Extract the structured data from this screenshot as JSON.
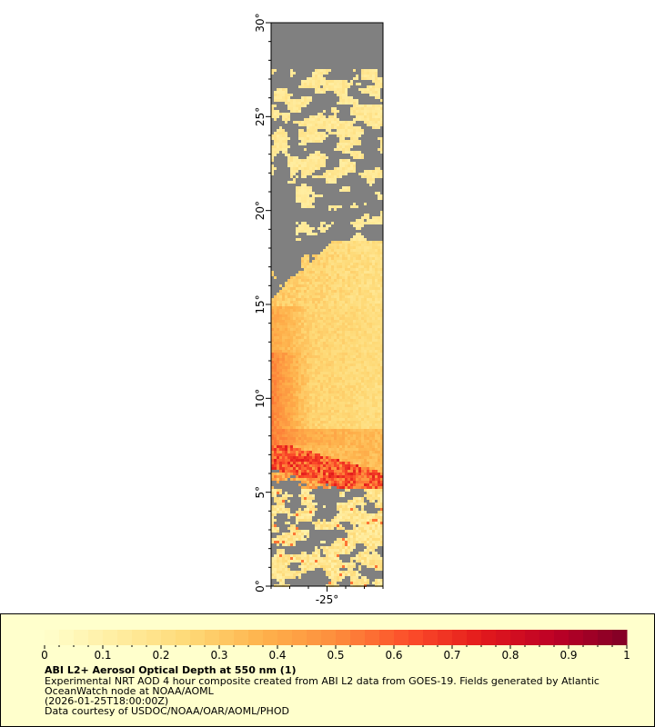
{
  "map": {
    "y_axis": {
      "ticks": [
        "0°",
        "5°",
        "10°",
        "15°",
        "20°",
        "25°",
        "30°"
      ],
      "range": [
        0,
        30
      ],
      "units": "degrees_north"
    },
    "x_axis": {
      "ticks": [
        "-25°"
      ],
      "range": [
        -28,
        -22
      ],
      "units": "degrees_east"
    },
    "nodata_color": "#808080"
  },
  "legend": {
    "colorbar": {
      "min": 0,
      "max": 1,
      "ticks": [
        "0",
        "0.1",
        "0.2",
        "0.3",
        "0.4",
        "0.5",
        "0.6",
        "0.7",
        "0.8",
        "0.9",
        "1"
      ],
      "colormap_stops": [
        "#ffffcc",
        "#ffeda0",
        "#fed976",
        "#feb24c",
        "#fd8d3c",
        "#fc4e2a",
        "#e31a1c",
        "#bd0026",
        "#800026"
      ]
    },
    "title": "ABI L2+ Aerosol Optical Depth at 550 nm (1)",
    "line1": "Experimental NRT AOD 4 hour composite created from ABI L2 data from GOES-19. Fields generated by Atlantic",
    "line2": "OceanWatch node at NOAA/AOML",
    "line3": "(2026-01-25T18:00:00Z)",
    "line4": "Data courtesy of USDOC/NOAA/OAR/AOML/PHOD"
  }
}
